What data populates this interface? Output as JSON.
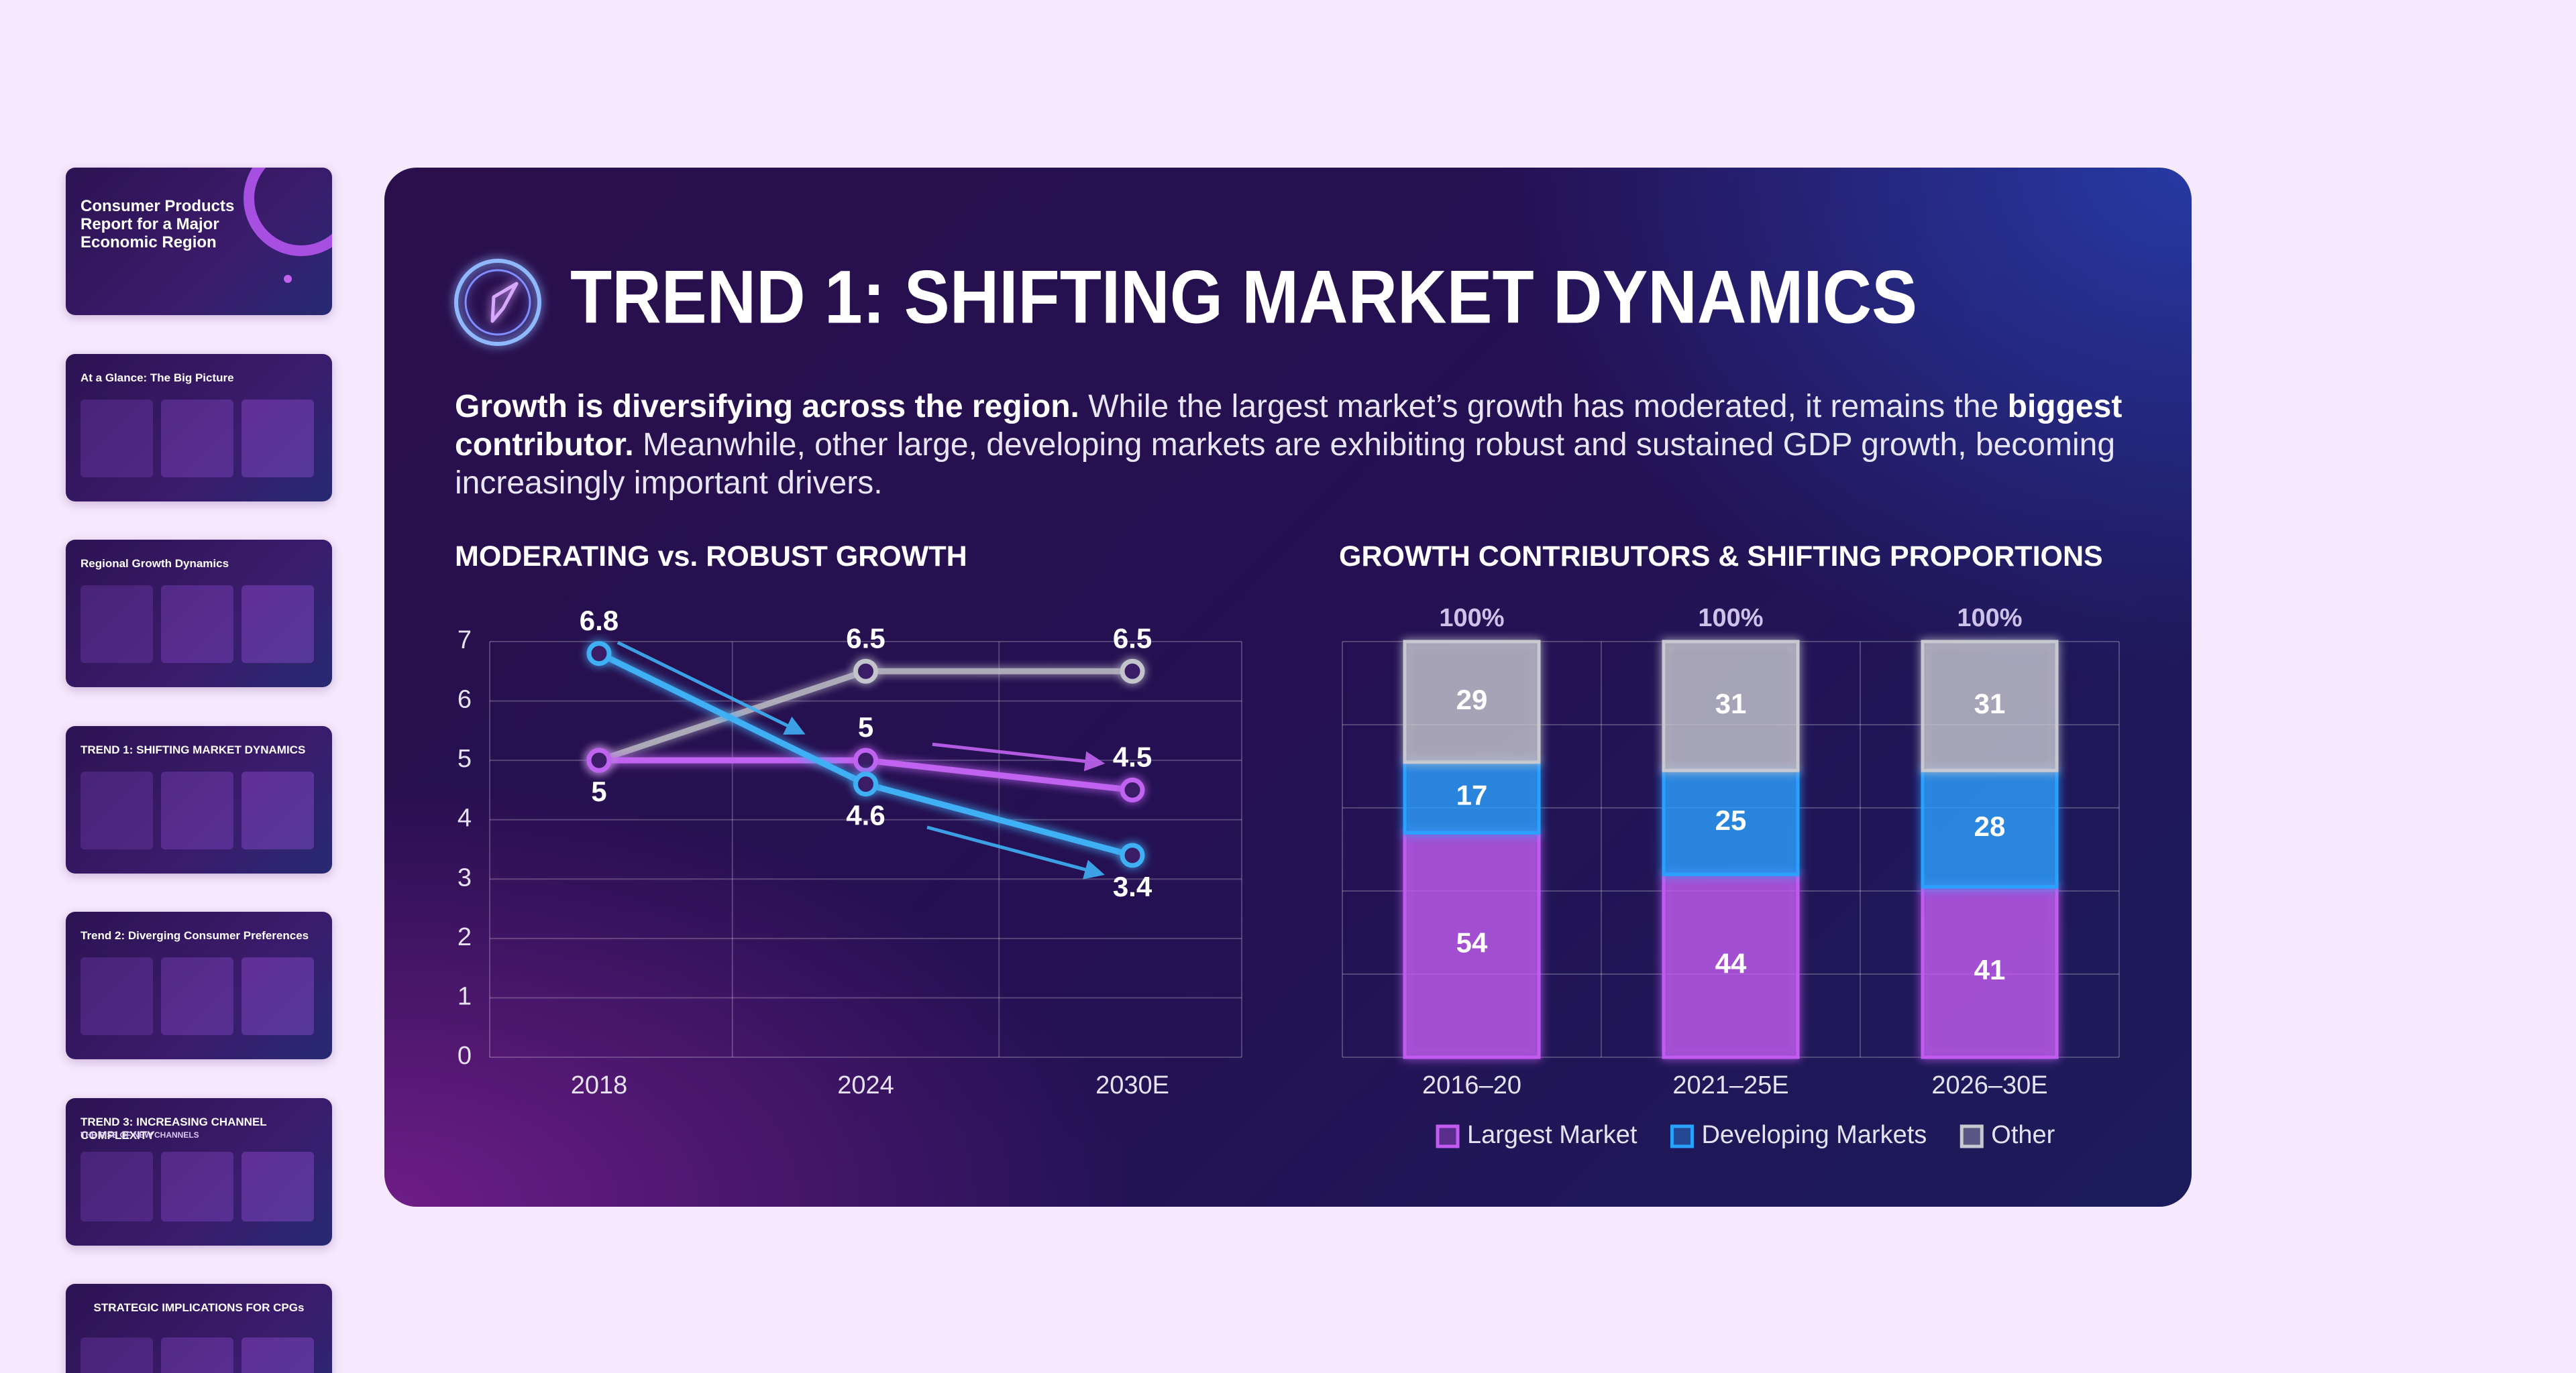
{
  "slides": [
    {
      "title": "Consumer Products Report for a Major Economic Region"
    },
    {
      "title": "At a Glance: The Big Picture"
    },
    {
      "title": "Regional Growth Dynamics"
    },
    {
      "title": "TREND 1: SHIFTING MARKET DYNAMICS"
    },
    {
      "title": "Trend 2: Diverging Consumer Preferences"
    },
    {
      "title": "TREND 3: INCREASING CHANNEL COMPLEXITY",
      "subtitle": "THE RISE OF NEW CHANNELS"
    },
    {
      "title": "STRATEGIC IMPLICATIONS FOR CPGs"
    }
  ],
  "slide": {
    "title": "TREND 1: SHIFTING MARKET DYNAMICS",
    "body": [
      {
        "text": "Growth is diversifying across the region.",
        "bold": true
      },
      {
        "text": " While the largest market’s growth has moderated, it remains the ",
        "bold": false
      },
      {
        "text": "biggest contributor.",
        "bold": true
      },
      {
        "text": " Meanwhile, other large, developing markets are exhibiting robust and sustained GDP growth, becoming increasingly important drivers.",
        "bold": false
      }
    ]
  },
  "chart_data": [
    {
      "type": "line",
      "title": "MODERATING vs. ROBUST GROWTH",
      "categories": [
        "2018",
        "2024",
        "2030E"
      ],
      "ylim": [
        0,
        7
      ],
      "yticks": [
        0,
        1,
        2,
        3,
        4,
        5,
        6,
        7
      ],
      "grid": true,
      "series": [
        {
          "color": "#3fb0f5",
          "values": [
            6.8,
            4.6,
            3.4
          ],
          "label_pos": [
            "above",
            "below",
            "below"
          ]
        },
        {
          "color": "#c064f0",
          "values": [
            5,
            5,
            4.5
          ],
          "label_pos": [
            "below",
            "above",
            "above"
          ]
        },
        {
          "color": "#c4c4cc",
          "values": [
            5,
            6.5,
            6.5
          ],
          "label_pos": [
            "none",
            "above",
            "above"
          ]
        }
      ]
    },
    {
      "type": "stacked-bar",
      "title": "GROWTH CONTRIBUTORS & SHIFTING PROPORTIONS",
      "categories": [
        "2016–20",
        "2021–25E",
        "2026–30E"
      ],
      "total_labels": [
        "100%",
        "100%",
        "100%"
      ],
      "ylim": [
        0,
        100
      ],
      "yticks": [
        0,
        20,
        40,
        60,
        80,
        100
      ],
      "grid": true,
      "tick_labels": false,
      "legend": "bottom",
      "series": [
        {
          "name": "Largest Market",
          "color": "#c25cf0",
          "values": [
            54,
            44,
            41
          ]
        },
        {
          "name": "Developing Markets",
          "color": "#2aa0ff",
          "values": [
            17,
            25,
            28
          ]
        },
        {
          "name": "Other",
          "color": "#c8c8d0",
          "values": [
            29,
            31,
            31
          ]
        }
      ]
    }
  ]
}
